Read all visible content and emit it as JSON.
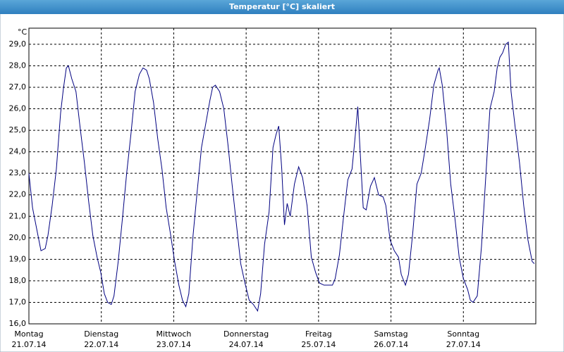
{
  "chart_data": {
    "type": "line",
    "title": "Temperatur [°C] skaliert",
    "y_label": "°C",
    "x": [
      0,
      1.2,
      2.6,
      4,
      5.4,
      6.3,
      7.7,
      9.1,
      10.5,
      11.4,
      12.4,
      13.1,
      14.2,
      15.6,
      17,
      18.4,
      19.8,
      21.2,
      22.6,
      23.8,
      25,
      26.1,
      27.3,
      28.2,
      29.6,
      31,
      32.4,
      33.8,
      35.2,
      36.6,
      37.8,
      39,
      39.9,
      41.3,
      42.7,
      44.1,
      45.5,
      46.9,
      48.3,
      49.7,
      50.9,
      52,
      53,
      54.4,
      55.8,
      57.2,
      58.6,
      60,
      60.9,
      61.8,
      63.2,
      64.6,
      66,
      67.4,
      68.8,
      70.2,
      71.6,
      73,
      74.4,
      75.8,
      76.8,
      78.1,
      79.6,
      80.9,
      81.9,
      82.8,
      83.8,
      84.7,
      85.6,
      86.6,
      88,
      89.4,
      90.7,
      92.2,
      93.6,
      95,
      96.3,
      97.8,
      99.2,
      100.6,
      101.5,
      102.9,
      104.3,
      105.7,
      107.1,
      108,
      109,
      109.9,
      110.8,
      111.8,
      113.2,
      114.5,
      115.9,
      117.4,
      118.3,
      119.7,
      121.1,
      122.5,
      123.4,
      124.8,
      125.8,
      127.2,
      128.6,
      130,
      131.4,
      132.8,
      134.2,
      135.6,
      136,
      137,
      138.4,
      139.8,
      141.2,
      142.6,
      144,
      145.4,
      146.3,
      147.2,
      148.6,
      150,
      151.4,
      152.8,
      154.2,
      155.2,
      156.1,
      157,
      158,
      158.9,
      159.8,
      161.2,
      162.6,
      164,
      165.4,
      166.8,
      167.5
    ],
    "series": [
      {
        "name": "Temperatur",
        "color": "#000080",
        "values": [
          23.0,
          21.4,
          20.4,
          19.4,
          19.5,
          20.1,
          21.5,
          23.2,
          25.8,
          26.9,
          27.9,
          28.0,
          27.4,
          26.8,
          25.1,
          23.5,
          21.7,
          20.1,
          19.1,
          18.4,
          17.4,
          17.0,
          16.9,
          17.3,
          18.9,
          20.9,
          23.0,
          24.8,
          26.8,
          27.6,
          27.9,
          27.8,
          27.4,
          26.3,
          24.6,
          23.2,
          21.4,
          20.2,
          18.9,
          17.8,
          17.1,
          16.8,
          17.4,
          20.1,
          22.2,
          24.2,
          25.3,
          26.4,
          27.0,
          27.1,
          26.8,
          26.0,
          24.3,
          22.4,
          20.6,
          18.8,
          17.9,
          17.1,
          16.9,
          16.6,
          17.4,
          19.7,
          21.2,
          24.2,
          24.8,
          25.2,
          23.2,
          20.6,
          21.6,
          21.0,
          22.5,
          23.3,
          22.8,
          21.5,
          19.1,
          18.4,
          17.9,
          17.8,
          17.8,
          17.8,
          18.1,
          19.2,
          21.0,
          22.7,
          23.2,
          24.5,
          26.1,
          23.7,
          21.4,
          21.3,
          22.4,
          22.8,
          22.0,
          21.9,
          21.5,
          19.9,
          19.4,
          19.1,
          18.3,
          17.8,
          18.3,
          20.2,
          22.5,
          23.0,
          24.2,
          25.5,
          27.1,
          27.8,
          27.9,
          27.1,
          25.1,
          22.5,
          20.9,
          19.1,
          18.1,
          17.6,
          17.1,
          17.0,
          17.3,
          19.6,
          22.8,
          26.0,
          26.8,
          27.9,
          28.4,
          28.6,
          29.0,
          29.1,
          26.8,
          25.1,
          23.5,
          21.5,
          19.9,
          18.9,
          18.8
        ]
      }
    ],
    "xlim": [
      0,
      168
    ],
    "xticks": [
      {
        "value": 0,
        "label": "Montag"
      },
      {
        "value": 24,
        "label": "Dienstag"
      },
      {
        "value": 48,
        "label": "Mittwoch"
      },
      {
        "value": 72,
        "label": "Donnerstag"
      },
      {
        "value": 96,
        "label": "Freitag"
      },
      {
        "value": 120,
        "label": "Samstag"
      },
      {
        "value": 144,
        "label": "Sonntag"
      }
    ],
    "xtick_dates": [
      "21.07.14",
      "22.07.14",
      "23.07.14",
      "24.07.14",
      "25.07.14",
      "26.07.14",
      "27.07.14"
    ],
    "ylim": [
      16,
      29.75
    ],
    "yticks": [
      {
        "value": 16,
        "label": "16,0"
      },
      {
        "value": 17,
        "label": "17,0"
      },
      {
        "value": 18,
        "label": "18,0"
      },
      {
        "value": 19,
        "label": "19,0"
      },
      {
        "value": 20,
        "label": "20,0"
      },
      {
        "value": 21,
        "label": "21,0"
      },
      {
        "value": 22,
        "label": "22,0"
      },
      {
        "value": 23,
        "label": "23,0"
      },
      {
        "value": 24,
        "label": "24,0"
      },
      {
        "value": 25,
        "label": "25,0"
      },
      {
        "value": 26,
        "label": "26,0"
      },
      {
        "value": 27,
        "label": "27,0"
      },
      {
        "value": 28,
        "label": "28,0"
      },
      {
        "value": 29,
        "label": "29,0"
      }
    ],
    "grid": true
  }
}
